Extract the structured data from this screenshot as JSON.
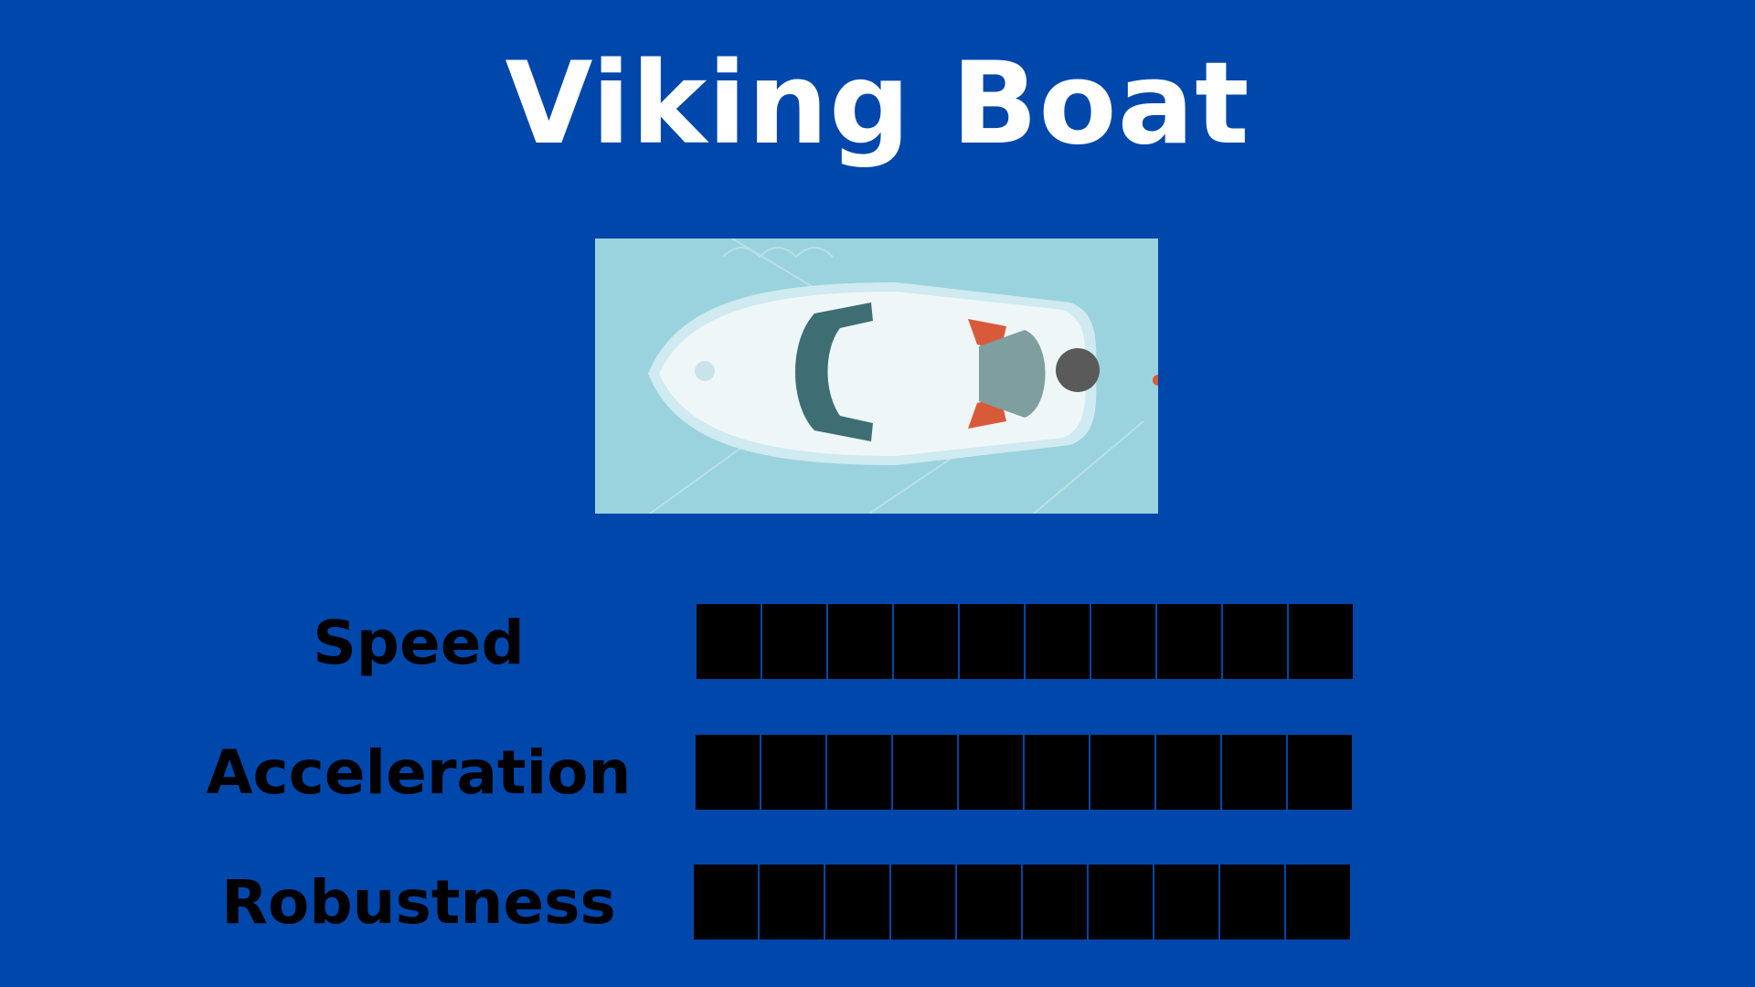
{
  "title": "Viking Boat",
  "boat": {
    "icon": "speedboat-top-view-image"
  },
  "stats": [
    {
      "label": "Speed",
      "value": 10,
      "max": 10
    },
    {
      "label": "Acceleration",
      "value": 10,
      "max": 10
    },
    {
      "label": "Robustness",
      "value": 10,
      "max": 10
    }
  ],
  "colors": {
    "background": "#0047ab",
    "title": "#ffffff",
    "label": "#000000",
    "bar_fill": "#000000"
  }
}
